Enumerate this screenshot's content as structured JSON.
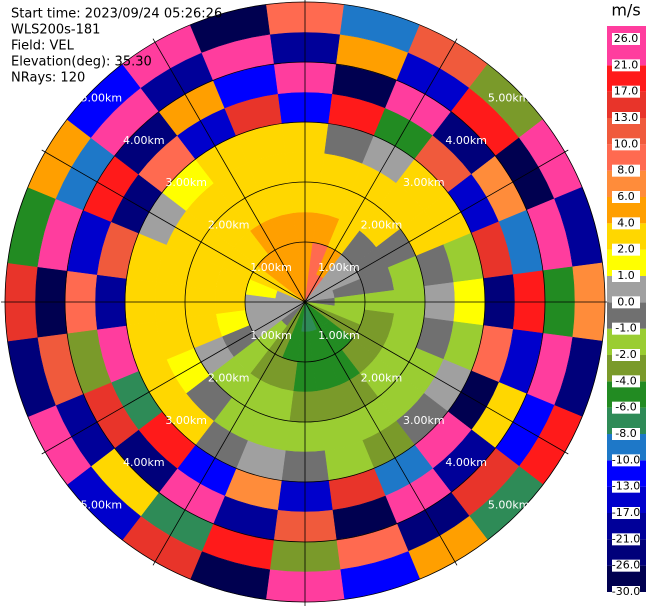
{
  "chart_data": {
    "type": "ppi",
    "annotations": [
      "Start time: 2023/09/24 05:26:26",
      "WLS200s-181",
      "Field: VEL",
      "Elevation(deg): 35.30",
      "NRays: 120"
    ],
    "azimuths": [
      0,
      15,
      30,
      45,
      60,
      75,
      90,
      105,
      120,
      135,
      150,
      165,
      180,
      195,
      210,
      225,
      240,
      255,
      270,
      285,
      300,
      315,
      330,
      345
    ],
    "range_bins": [
      0,
      0.5,
      1,
      1.5,
      2,
      2.5,
      3,
      3.5,
      4,
      4.5,
      5
    ],
    "values": [
      [
        5,
        5,
        5,
        3,
        2,
        2,
        -13,
        24,
        -21,
        9
      ],
      [
        8,
        8,
        5,
        3,
        2,
        -1,
        17,
        -27,
        4,
        -9
      ],
      [
        8,
        5,
        3,
        2,
        2,
        0,
        -6,
        22,
        -15,
        12
      ],
      [
        0,
        0,
        -1,
        2,
        2,
        3,
        10,
        -24,
        19,
        -3
      ],
      [
        0,
        0,
        -1,
        -1,
        2,
        2,
        -17,
        6,
        -28,
        23
      ],
      [
        0,
        -1,
        -1,
        -2,
        -1,
        -2,
        13,
        -9,
        25,
        -19
      ],
      [
        -1,
        -2,
        -2,
        -2,
        0,
        1,
        -22,
        18,
        -5,
        7
      ],
      [
        -2,
        -2,
        -3,
        -2,
        -1,
        -2,
        9,
        -14,
        27,
        -25
      ],
      [
        -3,
        -3,
        -3,
        -2,
        -2,
        0,
        -27,
        3,
        -11,
        20
      ],
      [
        -5,
        -5,
        -3,
        -2,
        -2,
        -1,
        21,
        -18,
        14,
        -7
      ],
      [
        -5,
        -5,
        -5,
        -3,
        -2,
        -3,
        -9,
        26,
        -23,
        5
      ],
      [
        -7,
        -5,
        -5,
        -3,
        -2,
        -2,
        15,
        -29,
        9,
        -12
      ],
      [
        -7,
        -5,
        -5,
        -3,
        -2,
        -1,
        -16,
        11,
        -4,
        24
      ],
      [
        -5,
        -5,
        -3,
        -2,
        -2,
        0,
        7,
        -21,
        18,
        -28
      ],
      [
        -3,
        -3,
        -3,
        -2,
        -2,
        -1,
        -12,
        23,
        -7,
        15
      ],
      [
        -1,
        -2,
        -2,
        -2,
        -1,
        2,
        19,
        -26,
        3,
        -16
      ],
      [
        0,
        0,
        -1,
        0,
        1,
        2,
        -8,
        14,
        -19,
        27
      ],
      [
        0,
        0,
        1,
        2,
        2,
        2,
        25,
        -3,
        11,
        -22
      ],
      [
        0,
        0,
        2,
        2,
        2,
        2,
        -20,
        9,
        -27,
        16
      ],
      [
        0,
        1,
        2,
        2,
        2,
        3,
        12,
        -15,
        22,
        -6
      ],
      [
        3,
        3,
        3,
        2,
        2,
        0,
        -25,
        20,
        -10,
        4
      ],
      [
        5,
        5,
        3,
        2,
        2,
        1,
        8,
        -23,
        26,
        -13
      ],
      [
        5,
        5,
        5,
        3,
        2,
        2,
        -14,
        5,
        -18,
        21
      ],
      [
        5,
        5,
        5,
        3,
        3,
        2,
        16,
        -11,
        24,
        -29
      ]
    ],
    "rlim": [
      0,
      5
    ],
    "rticks": [
      {
        "value": 1,
        "label": "1.00km"
      },
      {
        "value": 2,
        "label": "2.00km"
      },
      {
        "value": 3,
        "label": "3.00km"
      },
      {
        "value": 4,
        "label": "4.00km"
      },
      {
        "value": 5,
        "label": "5.00km"
      }
    ],
    "colorbar": {
      "title": "m/s",
      "ticks": [
        {
          "value": -30,
          "label": "-30.0"
        },
        {
          "value": -26,
          "label": "-26.0"
        },
        {
          "value": -21,
          "label": "-21.0"
        },
        {
          "value": -17,
          "label": "-17.0"
        },
        {
          "value": -13,
          "label": "-13.0"
        },
        {
          "value": -10,
          "label": "-10.0"
        },
        {
          "value": -8,
          "label": "-8.0"
        },
        {
          "value": -6,
          "label": "-6.0"
        },
        {
          "value": -4,
          "label": "-4.0"
        },
        {
          "value": -2,
          "label": "-2.0"
        },
        {
          "value": -1,
          "label": "-1.0"
        },
        {
          "value": 0,
          "label": "0.0"
        },
        {
          "value": 1,
          "label": "1.0"
        },
        {
          "value": 2,
          "label": "2.0"
        },
        {
          "value": 4,
          "label": "4.0"
        },
        {
          "value": 6,
          "label": "6.0"
        },
        {
          "value": 8,
          "label": "8.0"
        },
        {
          "value": 10,
          "label": "10.0"
        },
        {
          "value": 13,
          "label": "13.0"
        },
        {
          "value": 17,
          "label": "17.0"
        },
        {
          "value": 21,
          "label": "21.0"
        },
        {
          "value": 26,
          "label": "26.0"
        }
      ],
      "colors": [
        "#000050",
        "#00007a",
        "#000099",
        "#0000cc",
        "#0000ff",
        "#1e78c8",
        "#2e8b57",
        "#228b22",
        "#7a9a2a",
        "#9acd32",
        "#707070",
        "#a0a0a0",
        "#ffff00",
        "#ffd700",
        "#ff9f00",
        "#ff8c3a",
        "#ff6a50",
        "#f05a3c",
        "#e8342a",
        "#ff1a1a",
        "#ff3d9e"
      ]
    }
  }
}
